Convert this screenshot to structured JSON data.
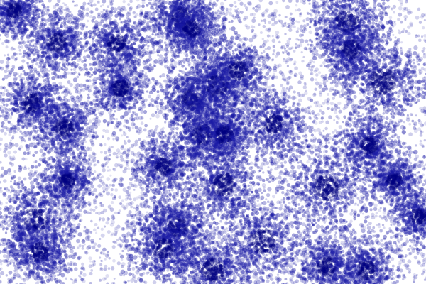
{
  "image": {
    "description_tag": "scatter-dot-field",
    "background_color": "#ffffff",
    "dot_color": "#1a1aa6",
    "dense_core_color": "#000080"
  }
}
